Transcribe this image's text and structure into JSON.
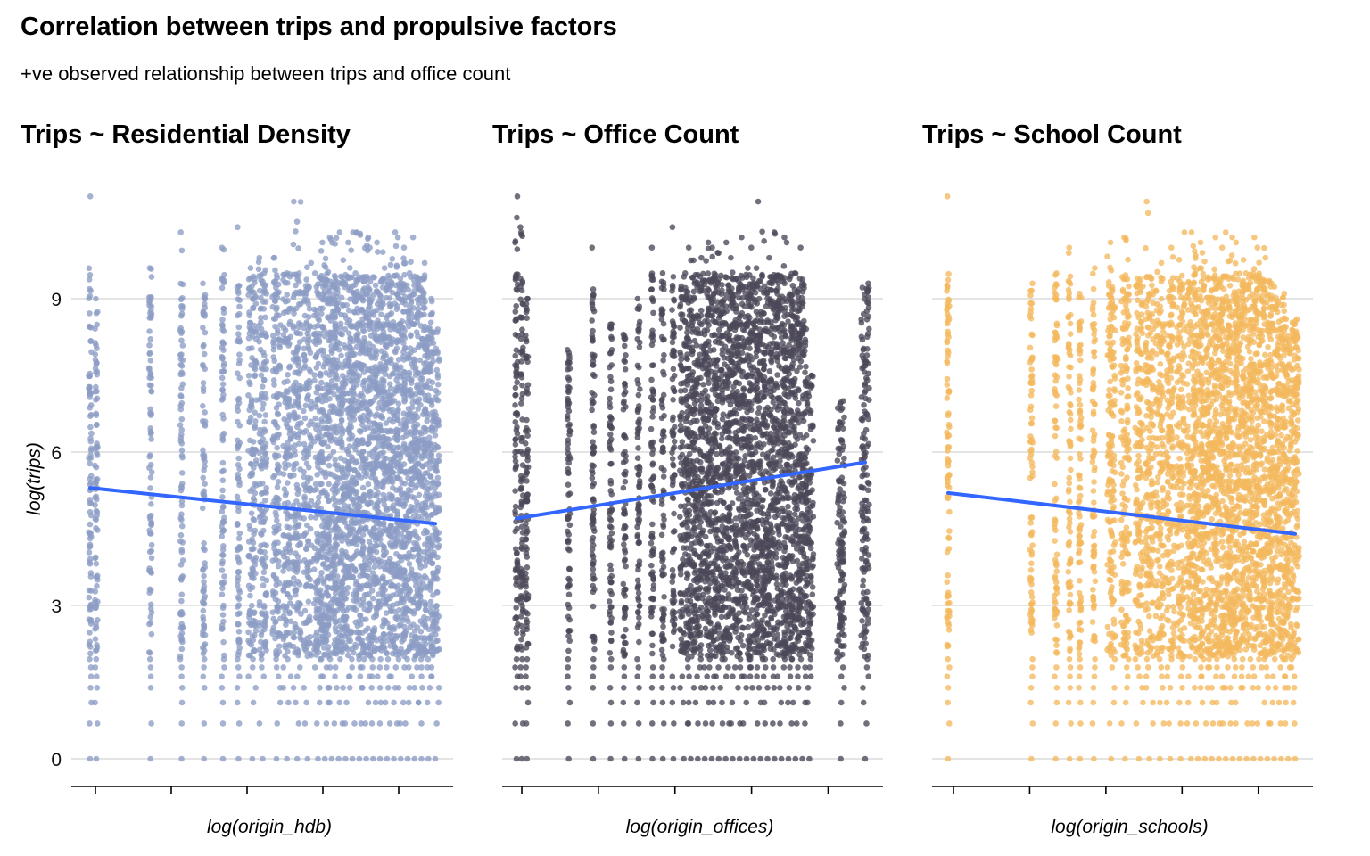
{
  "title": "Correlation between trips and propulsive factors",
  "subtitle": "+ve observed relationship between trips and office count",
  "chart_data": [
    {
      "type": "scatter",
      "title": "Trips ~ Residential Density",
      "xlabel": "log(origin_hdb)",
      "ylabel": "log(trips)",
      "yticks": [
        0,
        3,
        6,
        9
      ],
      "ylim": [
        -0.5,
        11.1
      ],
      "x_ticks_labelled": false,
      "grid": true,
      "point_color": "#8c9cc4",
      "trend_color": "#3366ff",
      "trend": {
        "x": [
          0.0,
          1.0
        ],
        "y": [
          5.3,
          4.6
        ]
      },
      "x_columns": [
        0.0,
        0.018,
        0.175,
        0.265,
        0.33,
        0.385,
        0.43,
        0.47,
        0.5,
        0.54,
        0.57,
        0.6,
        0.63,
        0.66,
        0.68,
        0.7,
        0.72,
        0.74,
        0.76,
        0.78,
        0.8,
        0.82,
        0.84,
        0.86,
        0.88,
        0.9,
        0.92,
        0.94,
        0.96,
        0.98,
        1.0
      ],
      "y_max_by_column": [
        11.0,
        9.0,
        9.6,
        10.3,
        9.3,
        10.0,
        10.4,
        9.6,
        9.8,
        9.8,
        9.5,
        10.9,
        9.7,
        9.5,
        10.1,
        10.2,
        10.3,
        10.1,
        10.3,
        10.3,
        10.2,
        10.0,
        10.1,
        9.6,
        10.3,
        10.2,
        10.0,
        10.2,
        9.7,
        9.0,
        8.4
      ],
      "dense_y_range": [
        2.0,
        9.5
      ]
    },
    {
      "type": "scatter",
      "title": "Trips ~ Office Count",
      "xlabel": "log(origin_offices)",
      "ylabel": "",
      "yticks": [
        0,
        3,
        6,
        9
      ],
      "ylim": [
        -0.5,
        11.1
      ],
      "x_ticks_labelled": false,
      "grid": true,
      "point_color": "#4b4858",
      "trend_color": "#3366ff",
      "trend": {
        "x": [
          0.0,
          1.0
        ],
        "y": [
          4.7,
          5.8
        ]
      },
      "x_columns": [
        0.0,
        0.015,
        0.03,
        0.15,
        0.22,
        0.27,
        0.31,
        0.35,
        0.39,
        0.42,
        0.45,
        0.48,
        0.5,
        0.52,
        0.54,
        0.56,
        0.58,
        0.6,
        0.62,
        0.64,
        0.66,
        0.68,
        0.7,
        0.72,
        0.74,
        0.76,
        0.78,
        0.8,
        0.82,
        0.84,
        0.93,
        1.0
      ],
      "y_max_by_column": [
        11.0,
        10.4,
        9.0,
        8.0,
        10.0,
        8.5,
        8.3,
        9.0,
        10.0,
        9.5,
        10.4,
        9.5,
        10.0,
        9.8,
        10.1,
        10.0,
        9.9,
        10.1,
        9.8,
        10.2,
        9.6,
        10.0,
        10.9,
        9.8,
        10.3,
        10.2,
        10.1,
        9.5,
        10.0,
        7.5,
        7.0,
        9.3
      ],
      "dense_y_range": [
        2.0,
        9.5
      ]
    },
    {
      "type": "scatter",
      "title": "Trips ~ School Count",
      "xlabel": "log(origin_schools)",
      "ylabel": "",
      "yticks": [
        0,
        3,
        6,
        9
      ],
      "ylim": [
        -0.5,
        11.1
      ],
      "x_ticks_labelled": false,
      "grid": true,
      "point_color": "#f4b95e",
      "trend_color": "#3366ff",
      "trend": {
        "x": [
          0.0,
          1.0
        ],
        "y": [
          5.2,
          4.4
        ]
      },
      "x_columns": [
        0.0,
        0.24,
        0.31,
        0.35,
        0.38,
        0.42,
        0.47,
        0.51,
        0.55,
        0.58,
        0.61,
        0.64,
        0.67,
        0.7,
        0.72,
        0.74,
        0.76,
        0.78,
        0.8,
        0.82,
        0.84,
        0.86,
        0.88,
        0.9,
        0.92,
        0.94,
        0.96,
        0.98,
        1.0
      ],
      "y_max_by_column": [
        11.0,
        9.3,
        9.5,
        10.0,
        9.1,
        9.6,
        10.1,
        10.2,
        9.4,
        10.9,
        9.7,
        10.0,
        10.3,
        10.3,
        10.1,
        9.9,
        10.2,
        10.0,
        10.3,
        10.2,
        10.1,
        9.5,
        10.2,
        10.0,
        9.8,
        9.3,
        9.1,
        8.6,
        8.6
      ],
      "dense_y_range": [
        2.0,
        9.5
      ]
    }
  ]
}
